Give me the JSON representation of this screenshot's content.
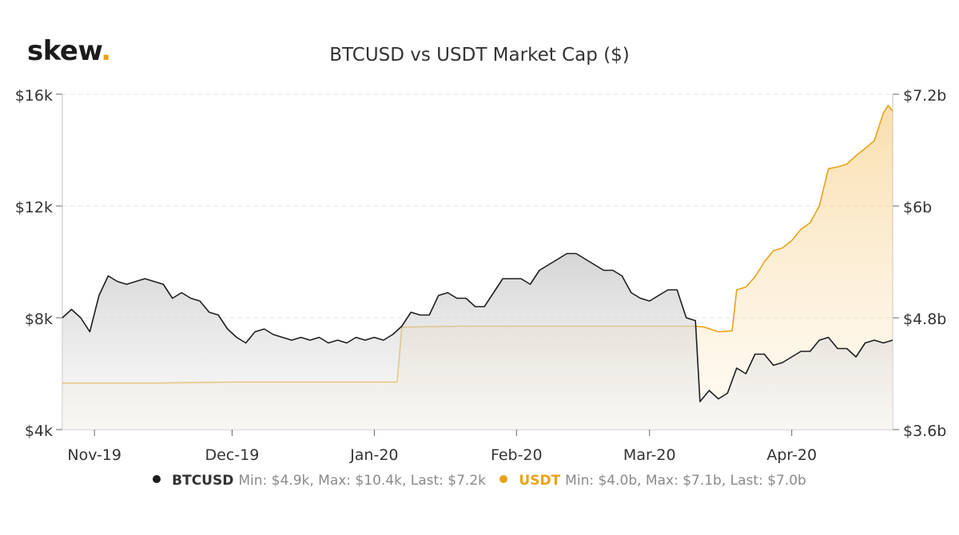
{
  "brand": {
    "name": "skew",
    "dot": ".",
    "dot_color": "#e8a317"
  },
  "chart_data": {
    "type": "line",
    "title": "BTCUSD vs USDT Market Cap ($)",
    "x_ticks": [
      "Nov-19",
      "Dec-19",
      "Jan-20",
      "Feb-20",
      "Mar-20",
      "Apr-20"
    ],
    "x_range": [
      "2019-10-25",
      "2020-04-23"
    ],
    "y_left": {
      "ticks": [
        "$16k",
        "$12k",
        "$8k",
        "$4k"
      ],
      "range": [
        4000,
        16000
      ]
    },
    "y_right": {
      "ticks": [
        "$7.2b",
        "$6b",
        "$4.8b",
        "$3.6b"
      ],
      "range": [
        3.6,
        7.2
      ]
    },
    "grid": true,
    "legend_position": "bottom",
    "series": [
      {
        "name": "BTCUSD",
        "axis": "left",
        "color": "#1e1e1e",
        "stats": "Min: $4.9k, Max: $10.4k, Last: $7.2k",
        "points": [
          [
            "2019-10-25",
            8000
          ],
          [
            "2019-10-27",
            8300
          ],
          [
            "2019-10-29",
            8000
          ],
          [
            "2019-10-31",
            7500
          ],
          [
            "2019-11-02",
            8800
          ],
          [
            "2019-11-04",
            9500
          ],
          [
            "2019-11-06",
            9300
          ],
          [
            "2019-11-08",
            9200
          ],
          [
            "2019-11-10",
            9300
          ],
          [
            "2019-11-12",
            9400
          ],
          [
            "2019-11-14",
            9300
          ],
          [
            "2019-11-16",
            9200
          ],
          [
            "2019-11-18",
            8700
          ],
          [
            "2019-11-20",
            8900
          ],
          [
            "2019-11-22",
            8700
          ],
          [
            "2019-11-24",
            8600
          ],
          [
            "2019-11-26",
            8200
          ],
          [
            "2019-11-28",
            8100
          ],
          [
            "2019-11-30",
            7600
          ],
          [
            "2019-12-02",
            7300
          ],
          [
            "2019-12-04",
            7100
          ],
          [
            "2019-12-06",
            7500
          ],
          [
            "2019-12-08",
            7600
          ],
          [
            "2019-12-10",
            7400
          ],
          [
            "2019-12-12",
            7300
          ],
          [
            "2019-12-14",
            7200
          ],
          [
            "2019-12-16",
            7300
          ],
          [
            "2019-12-18",
            7200
          ],
          [
            "2019-12-20",
            7300
          ],
          [
            "2019-12-22",
            7100
          ],
          [
            "2019-12-24",
            7200
          ],
          [
            "2019-12-26",
            7100
          ],
          [
            "2019-12-28",
            7300
          ],
          [
            "2019-12-30",
            7200
          ],
          [
            "2020-01-01",
            7300
          ],
          [
            "2020-01-03",
            7200
          ],
          [
            "2020-01-05",
            7400
          ],
          [
            "2020-01-07",
            7700
          ],
          [
            "2020-01-09",
            8200
          ],
          [
            "2020-01-11",
            8100
          ],
          [
            "2020-01-13",
            8100
          ],
          [
            "2020-01-15",
            8800
          ],
          [
            "2020-01-17",
            8900
          ],
          [
            "2020-01-19",
            8700
          ],
          [
            "2020-01-21",
            8700
          ],
          [
            "2020-01-23",
            8400
          ],
          [
            "2020-01-25",
            8400
          ],
          [
            "2020-01-27",
            8900
          ],
          [
            "2020-01-29",
            9400
          ],
          [
            "2020-01-31",
            9400
          ],
          [
            "2020-02-02",
            9400
          ],
          [
            "2020-02-04",
            9200
          ],
          [
            "2020-02-06",
            9700
          ],
          [
            "2020-02-08",
            9900
          ],
          [
            "2020-02-10",
            10100
          ],
          [
            "2020-02-12",
            10300
          ],
          [
            "2020-02-14",
            10300
          ],
          [
            "2020-02-16",
            10100
          ],
          [
            "2020-02-18",
            9900
          ],
          [
            "2020-02-20",
            9700
          ],
          [
            "2020-02-22",
            9700
          ],
          [
            "2020-02-24",
            9500
          ],
          [
            "2020-02-26",
            8900
          ],
          [
            "2020-02-28",
            8700
          ],
          [
            "2020-03-01",
            8600
          ],
          [
            "2020-03-03",
            8800
          ],
          [
            "2020-03-05",
            9000
          ],
          [
            "2020-03-07",
            9000
          ],
          [
            "2020-03-09",
            8000
          ],
          [
            "2020-03-11",
            7900
          ],
          [
            "2020-03-12",
            5000
          ],
          [
            "2020-03-14",
            5400
          ],
          [
            "2020-03-16",
            5100
          ],
          [
            "2020-03-18",
            5300
          ],
          [
            "2020-03-20",
            6200
          ],
          [
            "2020-03-22",
            6000
          ],
          [
            "2020-03-24",
            6700
          ],
          [
            "2020-03-26",
            6700
          ],
          [
            "2020-03-28",
            6300
          ],
          [
            "2020-03-30",
            6400
          ],
          [
            "2020-04-01",
            6600
          ],
          [
            "2020-04-03",
            6800
          ],
          [
            "2020-04-05",
            6800
          ],
          [
            "2020-04-07",
            7200
          ],
          [
            "2020-04-09",
            7300
          ],
          [
            "2020-04-11",
            6900
          ],
          [
            "2020-04-13",
            6900
          ],
          [
            "2020-04-15",
            6600
          ],
          [
            "2020-04-17",
            7100
          ],
          [
            "2020-04-19",
            7200
          ],
          [
            "2020-04-21",
            7100
          ],
          [
            "2020-04-23",
            7200
          ]
        ]
      },
      {
        "name": "USDT",
        "axis": "right",
        "color": "#e8a317",
        "stats": "Min: $4.0b, Max: $7.1b, Last: $7.0b",
        "points": [
          [
            "2019-10-25",
            4.1
          ],
          [
            "2019-11-15",
            4.1
          ],
          [
            "2019-12-01",
            4.11
          ],
          [
            "2019-12-15",
            4.11
          ],
          [
            "2020-01-01",
            4.11
          ],
          [
            "2020-01-06",
            4.11
          ],
          [
            "2020-01-07",
            4.7
          ],
          [
            "2020-01-20",
            4.71
          ],
          [
            "2020-02-10",
            4.71
          ],
          [
            "2020-03-01",
            4.71
          ],
          [
            "2020-03-11",
            4.71
          ],
          [
            "2020-03-13",
            4.7
          ],
          [
            "2020-03-16",
            4.65
          ],
          [
            "2020-03-19",
            4.66
          ],
          [
            "2020-03-20",
            5.1
          ],
          [
            "2020-03-22",
            5.13
          ],
          [
            "2020-03-24",
            5.24
          ],
          [
            "2020-03-26",
            5.4
          ],
          [
            "2020-03-28",
            5.52
          ],
          [
            "2020-03-30",
            5.55
          ],
          [
            "2020-04-01",
            5.63
          ],
          [
            "2020-04-03",
            5.75
          ],
          [
            "2020-04-05",
            5.82
          ],
          [
            "2020-04-07",
            6.0
          ],
          [
            "2020-04-09",
            6.4
          ],
          [
            "2020-04-11",
            6.42
          ],
          [
            "2020-04-13",
            6.45
          ],
          [
            "2020-04-15",
            6.54
          ],
          [
            "2020-04-17",
            6.62
          ],
          [
            "2020-04-19",
            6.7
          ],
          [
            "2020-04-21",
            7.0
          ],
          [
            "2020-04-22",
            7.08
          ],
          [
            "2020-04-23",
            7.02
          ]
        ]
      }
    ]
  }
}
